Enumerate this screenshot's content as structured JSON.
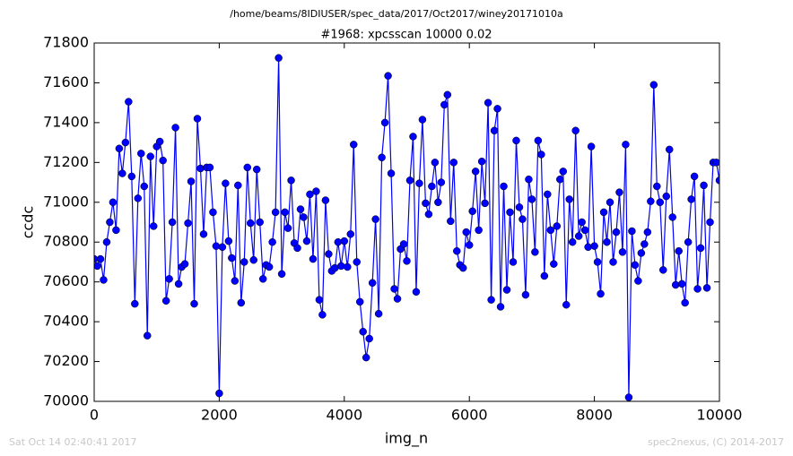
{
  "header": "/home/beams/8IDIUSER/spec_data/2017/Oct2017/winey20171010a",
  "footer_left": "Sat Oct 14 02:40:41 2017",
  "footer_right": "spec2nexus, (C) 2014-2017",
  "chart_data": {
    "type": "line",
    "title": "#1968: xpcsscan 10000 0.02",
    "x_label": "img_n",
    "y_label": "ccdc",
    "color": "#0000ff",
    "marker": true,
    "xlim": [
      0,
      10000
    ],
    "xticks": [
      0,
      2000,
      4000,
      6000,
      8000,
      10000
    ],
    "ylim": [
      70000,
      71800
    ],
    "yticks": [
      70000,
      70200,
      70400,
      70600,
      70800,
      71000,
      71200,
      71400,
      71600,
      71800
    ],
    "x": [
      0,
      50,
      100,
      150,
      200,
      250,
      300,
      350,
      400,
      450,
      500,
      550,
      600,
      650,
      700,
      750,
      800,
      850,
      900,
      950,
      1000,
      1050,
      1100,
      1150,
      1200,
      1250,
      1300,
      1350,
      1400,
      1450,
      1500,
      1550,
      1600,
      1650,
      1700,
      1750,
      1800,
      1850,
      1900,
      1950,
      2000,
      2050,
      2100,
      2150,
      2200,
      2250,
      2300,
      2350,
      2400,
      2450,
      2500,
      2550,
      2600,
      2650,
      2700,
      2750,
      2800,
      2850,
      2900,
      2950,
      3000,
      3050,
      3100,
      3150,
      3200,
      3250,
      3300,
      3350,
      3400,
      3450,
      3500,
      3550,
      3600,
      3650,
      3700,
      3750,
      3800,
      3850,
      3900,
      3950,
      4000,
      4050,
      4100,
      4150,
      4200,
      4250,
      4300,
      4350,
      4400,
      4450,
      4500,
      4550,
      4600,
      4650,
      4700,
      4750,
      4800,
      4850,
      4900,
      4950,
      5000,
      5050,
      5100,
      5150,
      5200,
      5250,
      5300,
      5350,
      5400,
      5450,
      5500,
      5550,
      5600,
      5650,
      5700,
      5750,
      5800,
      5850,
      5900,
      5950,
      6000,
      6050,
      6100,
      6150,
      6200,
      6250,
      6300,
      6350,
      6400,
      6450,
      6500,
      6550,
      6600,
      6650,
      6700,
      6750,
      6800,
      6850,
      6900,
      6950,
      7000,
      7050,
      7100,
      7150,
      7200,
      7250,
      7300,
      7350,
      7400,
      7450,
      7500,
      7550,
      7600,
      7650,
      7700,
      7750,
      7800,
      7850,
      7900,
      7950,
      8000,
      8050,
      8100,
      8150,
      8200,
      8250,
      8300,
      8350,
      8400,
      8450,
      8500,
      8550,
      8600,
      8650,
      8700,
      8750,
      8800,
      8850,
      8900,
      8950,
      9000,
      9050,
      9100,
      9150,
      9200,
      9250,
      9300,
      9350,
      9400,
      9450,
      9500,
      9550,
      9600,
      9650,
      9700,
      9750,
      9800,
      9850,
      9900,
      9950,
      10000
    ],
    "values": [
      70715,
      70680,
      70715,
      70610,
      70800,
      70900,
      71000,
      70860,
      71270,
      71145,
      71300,
      71505,
      71130,
      70490,
      71020,
      71245,
      71080,
      70330,
      71230,
      70880,
      71280,
      71305,
      71210,
      70505,
      70615,
      70900,
      71375,
      70590,
      70675,
      70690,
      70895,
      71105,
      70490,
      71420,
      71170,
      70840,
      71175,
      71175,
      70950,
      70780,
      70040,
      70775,
      71095,
      70805,
      70720,
      70605,
      71085,
      70495,
      70700,
      71175,
      70895,
      70710,
      71165,
      70900,
      70615,
      70685,
      70675,
      70800,
      70950,
      71725,
      70640,
      70950,
      70870,
      71110,
      70795,
      70770,
      70965,
      70925,
      70805,
      71040,
      70715,
      71055,
      70510,
      70435,
      71010,
      70740,
      70655,
      70670,
      70800,
      70680,
      70805,
      70675,
      70840,
      71290,
      70700,
      70500,
      70350,
      70220,
      70315,
      70595,
      70915,
      70440,
      71225,
      71400,
      71635,
      71145,
      70565,
      70515,
      70765,
      70790,
      70705,
      71110,
      71330,
      70550,
      71095,
      71415,
      70995,
      70940,
      71080,
      71200,
      71000,
      71100,
      71490,
      71540,
      70905,
      71200,
      70755,
      70685,
      70670,
      70850,
      70785,
      70955,
      71155,
      70860,
      71205,
      70995,
      71500,
      70510,
      71360,
      71470,
      70475,
      71080,
      70560,
      70950,
      70700,
      71310,
      70975,
      70915,
      70535,
      71115,
      71015,
      70750,
      71310,
      71240,
      70630,
      71040,
      70860,
      70690,
      70880,
      71115,
      71155,
      70485,
      71015,
      70800,
      71360,
      70830,
      70900,
      70860,
      70775,
      71280,
      70780,
      70700,
      70540,
      70950,
      70800,
      71000,
      70700,
      70850,
      71050,
      70750,
      71290,
      70020,
      70855,
      70685,
      70605,
      70745,
      70790,
      70850,
      71005,
      71590,
      71080,
      71000,
      70660,
      71030,
      71265,
      70925,
      70585,
      70755,
      70590,
      70495,
      70800,
      71015,
      71130,
      70565,
      70770,
      71085,
      70570,
      70900,
      71200,
      71200,
      71110
    ]
  }
}
